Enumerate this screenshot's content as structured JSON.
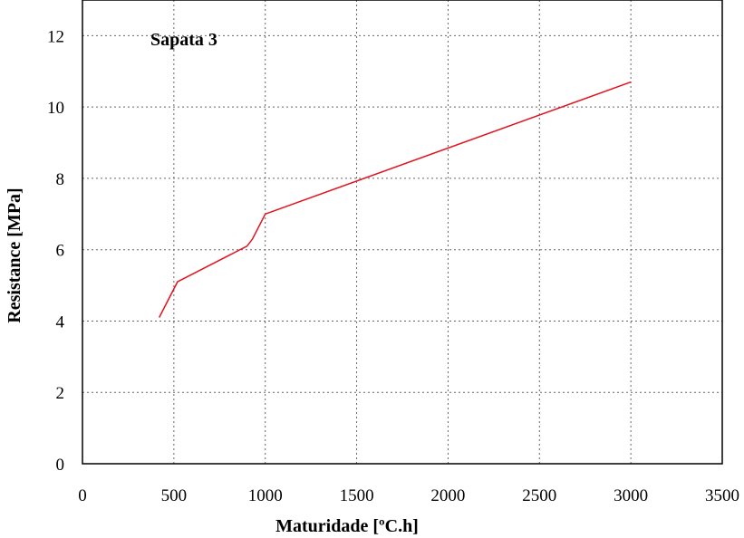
{
  "chart_data": {
    "type": "line",
    "title": "",
    "annotation": "Sapata 3",
    "xlabel": "Maturidade  [ºC.h]",
    "ylabel": "Resistance  [MPa]",
    "xlim": [
      0,
      3500
    ],
    "ylim": [
      0,
      13
    ],
    "xticks": [
      0,
      500,
      1000,
      1500,
      2000,
      2500,
      3000,
      3500
    ],
    "yticks": [
      0,
      2,
      4,
      6,
      8,
      10,
      12
    ],
    "grid": true,
    "grid_style": "dotted",
    "series": [
      {
        "color": "#e0141e",
        "x": [
          420,
          520,
          900,
          930,
          1000,
          3000
        ],
        "y": [
          4.1,
          5.1,
          6.1,
          6.3,
          7.0,
          10.7
        ]
      }
    ]
  }
}
